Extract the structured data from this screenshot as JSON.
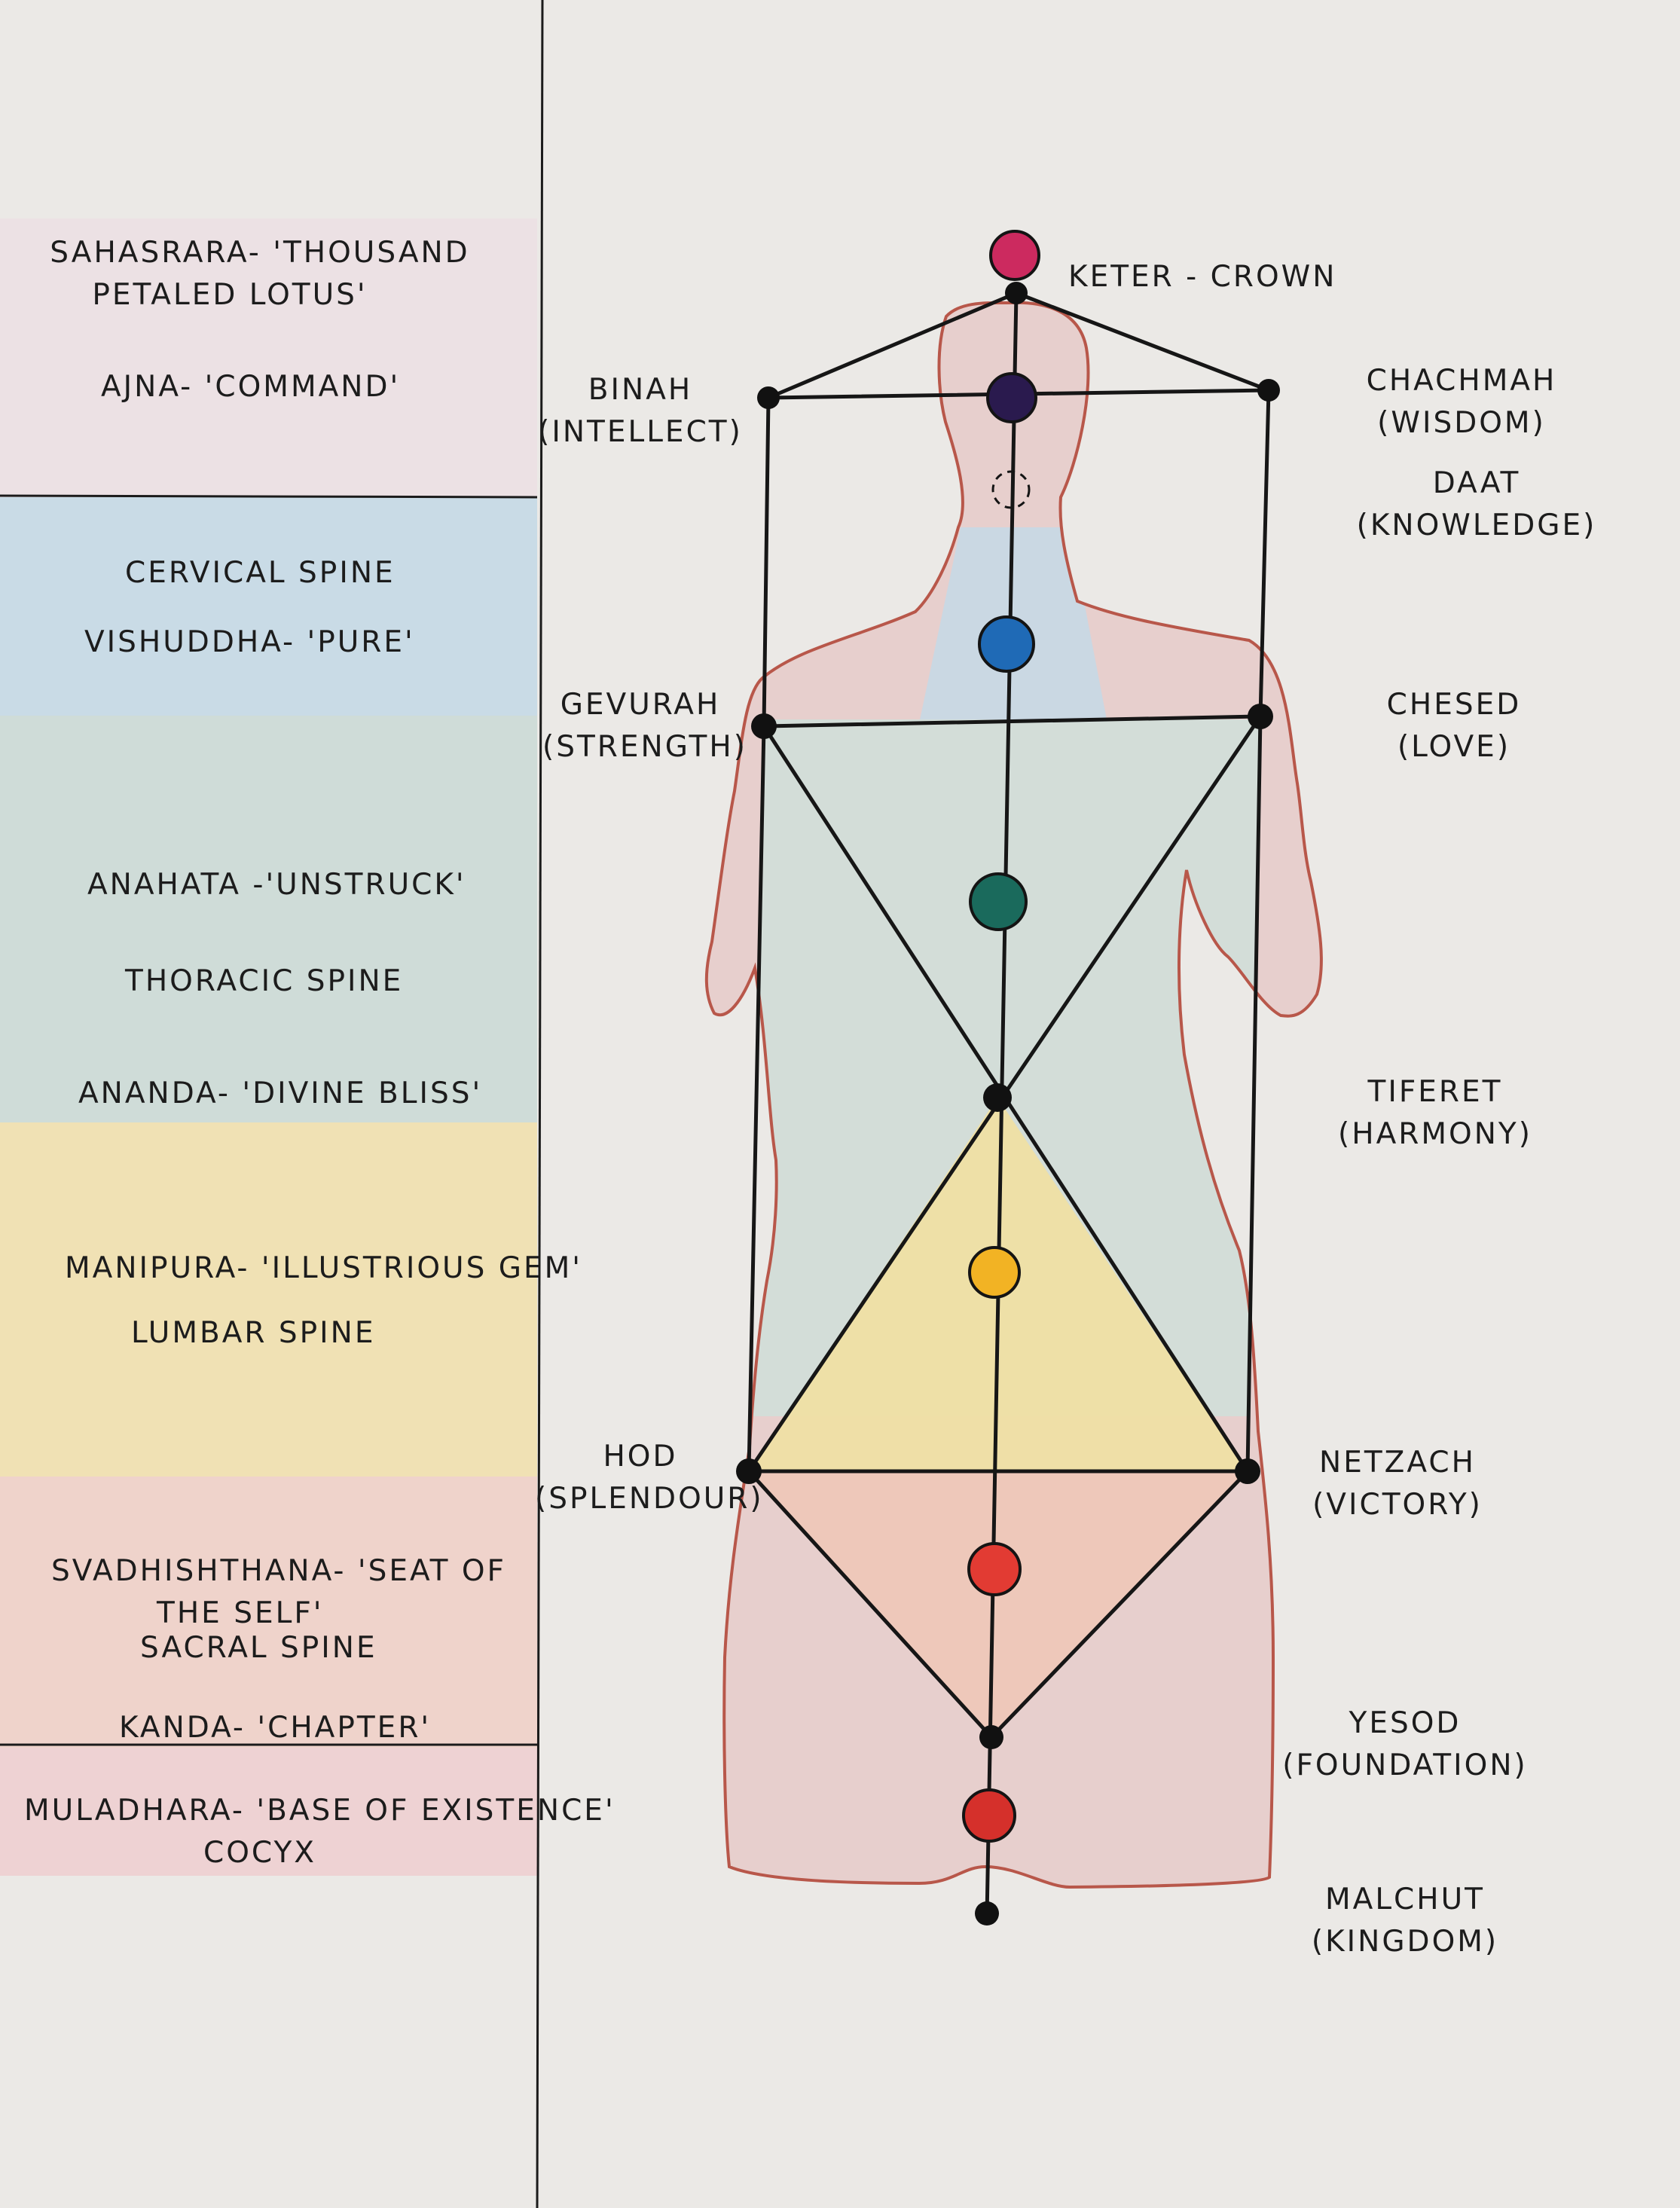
{
  "colors": {
    "paper": "#ebe9e6",
    "band_crown": "#ecdfe3",
    "band_throat": "#c9dbe6",
    "band_heart": "#cfdcd8",
    "band_solar": "#f0e1b4",
    "band_sacral": "#efd3cb",
    "band_root": "#eed2d3",
    "body_outline": "#b8574a",
    "body_fill": "#e7cfcd",
    "crown": "#cc2a5f",
    "third_eye": "#2a1a4e",
    "throat": "#1f6ab6",
    "heart": "#1a6a5c",
    "solar": "#f2b324",
    "sacral": "#e23b33",
    "root": "#d5302b"
  },
  "left_panel": {
    "sahasrara": [
      "SAHASRARA- 'THOUSAND",
      "PETALED LOTUS'"
    ],
    "ajna": "AJNA- 'COMMAND'",
    "cervical": "CERVICAL SPINE",
    "vishuddha": "VISHUDDHA- 'PURE'",
    "anahata": "ANAHATA -'UNSTRUCK'",
    "thoracic": "THORACIC SPINE",
    "ananda": "ANANDA- 'DIVINE BLISS'",
    "manipura": "MANIPURA- 'ILLUSTRIOUS GEM'",
    "lumbar": "LUMBAR SPINE",
    "svadhishthana": [
      "SVADHISHTHANA- 'SEAT OF",
      "THE SELF'"
    ],
    "sacral": "SACRAL SPINE",
    "kanda": "KANDA- 'CHAPTER'",
    "muladhara": "MULADHARA- 'BASE OF EXISTENCE'",
    "cocyx": "COCYX"
  },
  "sefirot": {
    "keter": "KETER - CROWN",
    "binah": [
      "BINAH",
      "(INTELLECT)"
    ],
    "chachmah": [
      "CHACHMAH",
      "(WISDOM)"
    ],
    "daat": [
      "DAAT",
      "(KNOWLEDGE)"
    ],
    "gevurah": [
      "GEVURAH",
      "(STRENGTH)"
    ],
    "chesed": [
      "CHESED",
      "(LOVE)"
    ],
    "tiferet": [
      "TIFERET",
      "(HARMONY)"
    ],
    "hod": [
      "HOD",
      "(SPLENDOUR)"
    ],
    "netzach": [
      "NETZACH",
      "(VICTORY)"
    ],
    "yesod": [
      "YESOD",
      "(FOUNDATION)"
    ],
    "malchut": [
      "MALCHUT",
      "(KINGDOM)"
    ]
  }
}
